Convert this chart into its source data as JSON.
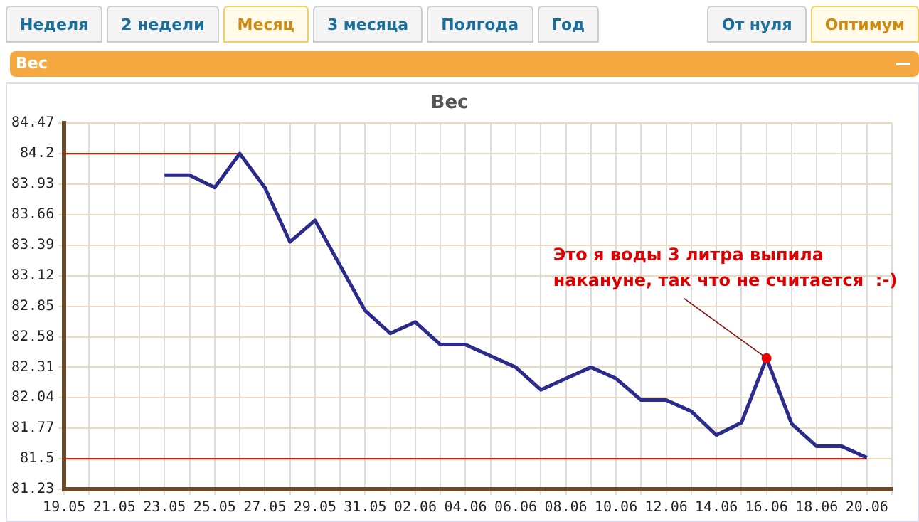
{
  "chart_data": {
    "type": "line",
    "title": "Вес",
    "annotations": [
      "Неделя",
      "2 недели",
      "Месяц",
      "3 месяца",
      "Полгода",
      "Год",
      "От нуля",
      "Оптимум",
      {
        "text": "Это я воды 3 литра выпила\nнакануне, так что не считается  :-)",
        "x": "--06-16",
        "y": 82.39
      }
    ],
    "series": [
      {
        "color": "#2b2b8c",
        "x": [
          "--05-23",
          "--05-24",
          "--05-25",
          "--05-26",
          "--05-27",
          "--05-28",
          "--05-29",
          "--05-30",
          "--05-31",
          "--06-01",
          "--06-02",
          "--06-03",
          "--06-04",
          "--06-05",
          "--06-06",
          "--06-07",
          "--06-08",
          "--06-09",
          "--06-10",
          "--06-11",
          "--06-12",
          "--06-13",
          "--06-14",
          "--06-15",
          "--06-16",
          "--06-17",
          "--06-18",
          "--06-19",
          "--06-20"
        ],
        "values": [
          84.01,
          84.01,
          83.9,
          84.2,
          83.9,
          83.42,
          83.61,
          83.21,
          82.81,
          82.61,
          82.71,
          82.51,
          82.51,
          82.41,
          82.31,
          82.11,
          82.21,
          82.31,
          82.21,
          82.02,
          82.02,
          81.92,
          81.71,
          81.82,
          82.39,
          81.81,
          81.61,
          81.61,
          81.51
        ]
      },
      {
        "color": "#cc2200",
        "x": [
          "--05-19",
          "--05-26"
        ],
        "values": [
          84.2,
          84.2
        ]
      },
      {
        "color": "#cc2200",
        "x": [
          "--05-19",
          "--06-20"
        ],
        "values": [
          81.5,
          81.5
        ]
      }
    ],
    "xlim": [
      "--05-19",
      "--06-21"
    ],
    "xticks": [
      {
        "value": "--05-19",
        "label": "19.05"
      },
      {
        "value": "--05-21",
        "label": "21.05"
      },
      {
        "value": "--05-23",
        "label": "23.05"
      },
      {
        "value": "--05-25",
        "label": "25.05"
      },
      {
        "value": "--05-27",
        "label": "27.05"
      },
      {
        "value": "--05-29",
        "label": "29.05"
      },
      {
        "value": "--05-31",
        "label": "31.05"
      },
      {
        "value": "--06-02",
        "label": "02.06"
      },
      {
        "value": "--06-04",
        "label": "04.06"
      },
      {
        "value": "--06-06",
        "label": "06.06"
      },
      {
        "value": "--06-08",
        "label": "08.06"
      },
      {
        "value": "--06-10",
        "label": "10.06"
      },
      {
        "value": "--06-12",
        "label": "12.06"
      },
      {
        "value": "--06-14",
        "label": "14.06"
      },
      {
        "value": "--06-16",
        "label": "16.06"
      },
      {
        "value": "--06-18",
        "label": "18.06"
      },
      {
        "value": "--06-20",
        "label": "20.06"
      }
    ],
    "ylim": [
      81.23,
      84.47
    ],
    "yticks": [
      81.23,
      81.5,
      81.77,
      82.04,
      82.31,
      82.58,
      82.85,
      83.12,
      83.39,
      83.66,
      83.93,
      84.2,
      84.47
    ],
    "grid": true,
    "legend": false,
    "marker": "none",
    "line_style": "solid"
  }
}
